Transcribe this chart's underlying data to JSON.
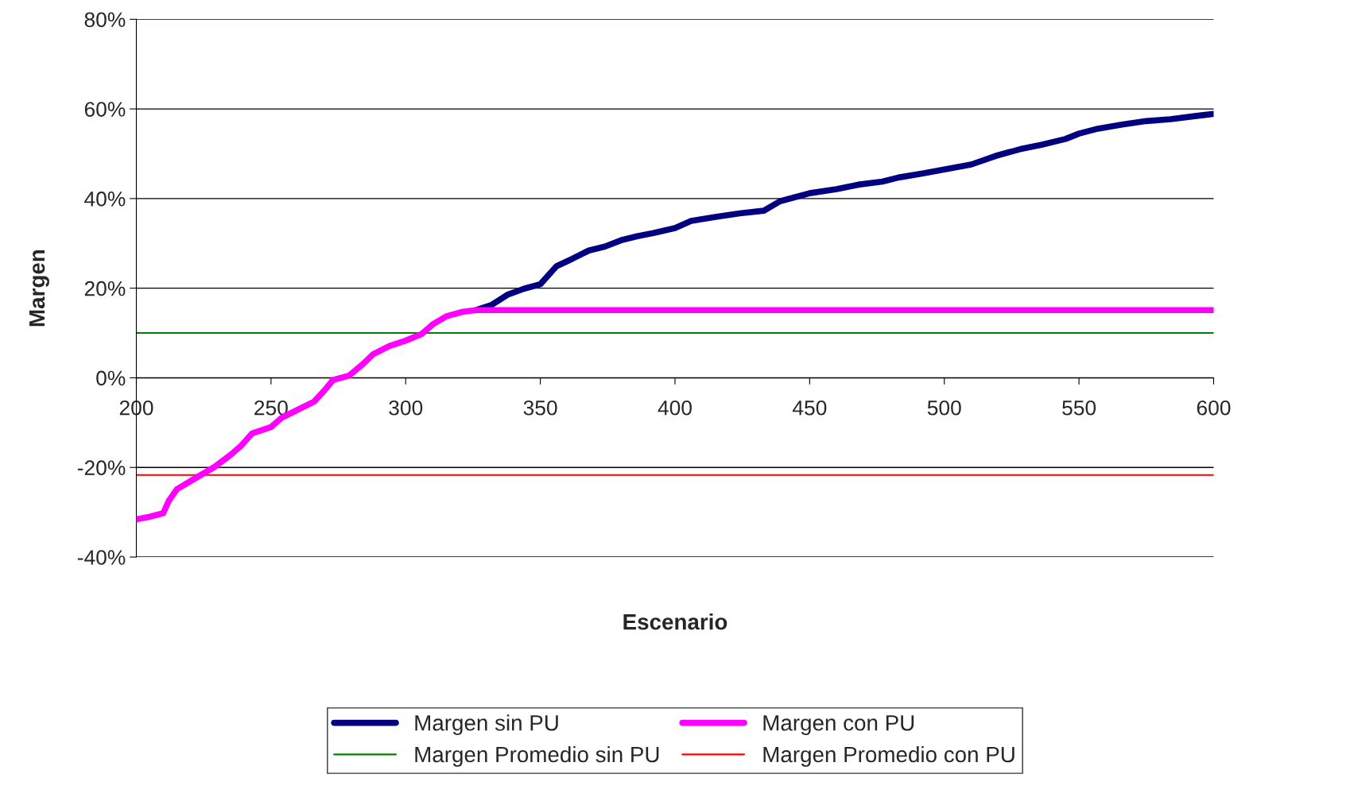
{
  "chart_data": {
    "type": "line",
    "xlabel": "Escenario",
    "ylabel": "Margen",
    "xlim": [
      200,
      600
    ],
    "xticks": [
      200,
      250,
      300,
      350,
      400,
      450,
      500,
      550,
      600
    ],
    "ylim": [
      -40,
      80
    ],
    "yticks": [
      {
        "value": -40,
        "label": "-40%"
      },
      {
        "value": -20,
        "label": "-20%"
      },
      {
        "value": 0,
        "label": "0%"
      },
      {
        "value": 20,
        "label": "20%"
      },
      {
        "value": 40,
        "label": "40%"
      },
      {
        "value": 60,
        "label": "60%"
      },
      {
        "value": 80,
        "label": "80%"
      }
    ],
    "grid": "y",
    "legend": "bottom",
    "marker": "none",
    "line_style": "solid",
    "series": [
      {
        "name": "Margen sin PU",
        "color": "#000080",
        "x": [
          326,
          332,
          338,
          344,
          350,
          356,
          362,
          368,
          374,
          380,
          386,
          392,
          400,
          406,
          415,
          424,
          433,
          439,
          450,
          460,
          468,
          477,
          483,
          492,
          500,
          510,
          519,
          528,
          536,
          545,
          550,
          557,
          566,
          575,
          584,
          593,
          600
        ],
        "values": [
          15.1,
          16.3,
          18.6,
          19.9,
          20.9,
          24.9,
          26.6,
          28.4,
          29.3,
          30.7,
          31.6,
          32.3,
          33.4,
          35,
          35.9,
          36.7,
          37.3,
          39.4,
          41.2,
          42.1,
          43.1,
          43.8,
          44.7,
          45.6,
          46.5,
          47.6,
          49.5,
          51,
          52,
          53.3,
          54.5,
          55.6,
          56.5,
          57.3,
          57.7,
          58.4,
          58.9
        ]
      },
      {
        "name": "Margen con PU",
        "color": "#ff00ff",
        "x": [
          200,
          205,
          210,
          212,
          215,
          222.5,
          229,
          235,
          239,
          243,
          250,
          254,
          260,
          266,
          270,
          273,
          279,
          284,
          288,
          294,
          300,
          306,
          310,
          315,
          321,
          326,
          600
        ],
        "values": [
          -31.6,
          -31,
          -30.2,
          -27.5,
          -24.9,
          -22.2,
          -19.9,
          -17.2,
          -15.1,
          -12.4,
          -11,
          -8.9,
          -7.1,
          -5.3,
          -2.7,
          -0.5,
          0.5,
          3,
          5.3,
          7.1,
          8.3,
          9.8,
          11.9,
          13.7,
          14.7,
          15.1,
          15.1
        ]
      }
    ],
    "ref_lines": [
      {
        "axis": "y",
        "value": 10,
        "label": "Margen Promedio sin PU",
        "color": "#008000"
      },
      {
        "axis": "y",
        "value": -21.7,
        "label": "Margen Promedio con PU",
        "color": "#ff0000"
      }
    ]
  }
}
